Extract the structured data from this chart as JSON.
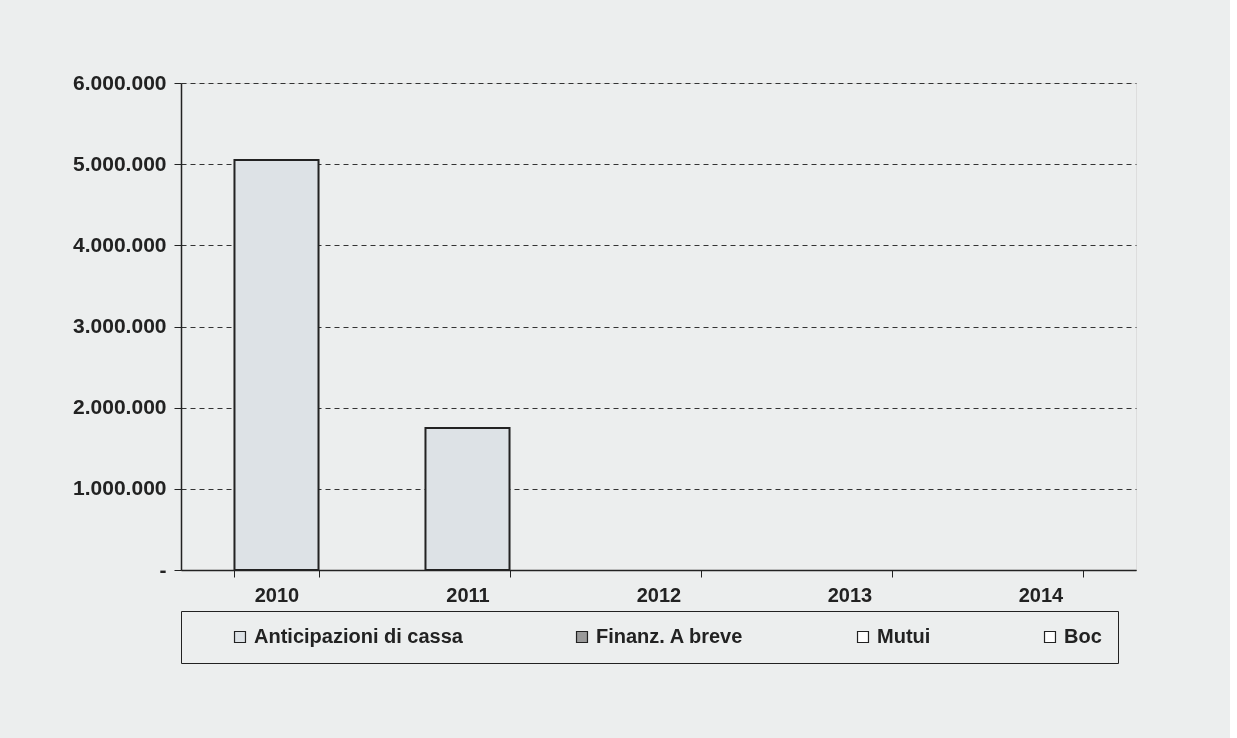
{
  "chart_data": {
    "type": "bar",
    "categories": [
      "2010",
      "2011",
      "2012",
      "2013",
      "2014"
    ],
    "series": [
      {
        "name": "Anticipazioni di cassa",
        "color": "#dde2e6",
        "values": [
          5050000,
          1750000,
          null,
          null,
          null
        ]
      },
      {
        "name": "Finanz. A breve",
        "color": "#9a9a9a",
        "values": [
          null,
          null,
          null,
          null,
          null
        ]
      },
      {
        "name": "Mutui",
        "color": "#ffffff",
        "values": [
          null,
          null,
          null,
          null,
          null
        ]
      },
      {
        "name": "Boc",
        "color": "#ffffff",
        "values": [
          null,
          null,
          null,
          null,
          null
        ]
      }
    ],
    "ylim": [
      0,
      6000000
    ],
    "yticks": [
      {
        "value": 0,
        "label": "-"
      },
      {
        "value": 1000000,
        "label": "1.000.000"
      },
      {
        "value": 2000000,
        "label": "2.000.000"
      },
      {
        "value": 3000000,
        "label": "3.000.000"
      },
      {
        "value": 4000000,
        "label": "4.000.000"
      },
      {
        "value": 5000000,
        "label": "5.000.000"
      },
      {
        "value": 6000000,
        "label": "6.000.000"
      }
    ],
    "grid": "y",
    "legend": "bottom"
  }
}
